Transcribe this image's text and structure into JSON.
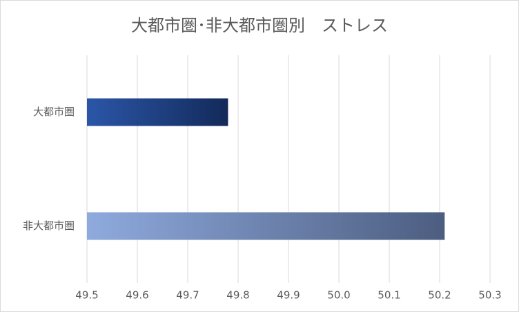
{
  "chart_data": {
    "type": "barh",
    "title": "大都市圏･非大都市圏別　ストレス",
    "categories": [
      "大都市圏",
      "非大都市圏"
    ],
    "values": [
      49.78,
      50.21
    ],
    "colors": [
      [
        "#2b56a8",
        "#132a5a"
      ],
      [
        "#8faade",
        "#4c5d80"
      ]
    ],
    "xlim": [
      49.5,
      50.3
    ],
    "xticks": [
      49.5,
      49.6,
      49.7,
      49.8,
      49.9,
      {
        "value": 50,
        "label": "50.0"
      },
      50.1,
      50.2,
      50.3
    ],
    "grid": true
  }
}
